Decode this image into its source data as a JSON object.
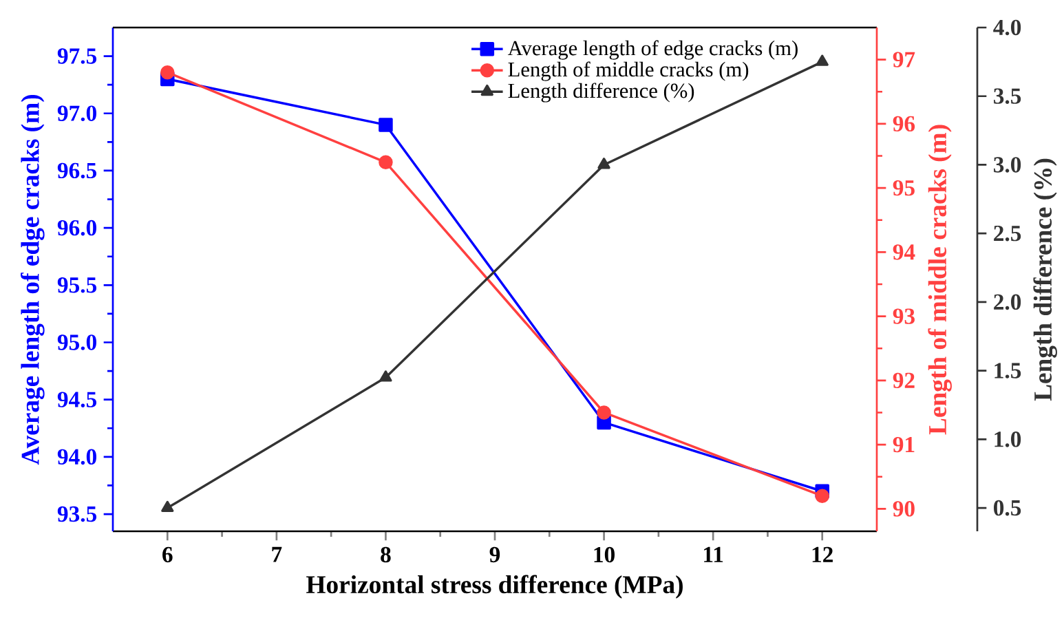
{
  "chart_data": {
    "type": "line",
    "xlabel": "Horizontal stress difference (MPa)",
    "ylabel": "Average length of edge cracks (m)",
    "y2label": "Length of middle cracks (m)",
    "y3label": "Length difference (%)",
    "x": [
      6,
      8,
      10,
      12
    ],
    "xlim": [
      5.5,
      12.5
    ],
    "xticks": [
      6,
      7,
      8,
      9,
      10,
      11,
      12
    ],
    "ylim": [
      93.35,
      97.75
    ],
    "yticks": [
      {
        "value": 93.5,
        "label": "93.5"
      },
      {
        "value": 94,
        "label": "94.0"
      },
      {
        "value": 94.5,
        "label": "94.5"
      },
      {
        "value": 95,
        "label": "95.0"
      },
      {
        "value": 95.5,
        "label": "95.5"
      },
      {
        "value": 96,
        "label": "96.0"
      },
      {
        "value": 96.5,
        "label": "96.5"
      },
      {
        "value": 97,
        "label": "97.0"
      },
      {
        "value": 97.5,
        "label": "97.5"
      }
    ],
    "y2lim": [
      89.65,
      97.5
    ],
    "y2ticks": [
      90,
      91,
      92,
      93,
      94,
      95,
      96,
      97
    ],
    "y3lim": [
      0.33,
      4.0
    ],
    "y3ticks": [
      0.5,
      {
        "value": 1,
        "label": "1.0"
      },
      1.5,
      {
        "value": 2,
        "label": "2.0"
      },
      2.5,
      {
        "value": 3,
        "label": "3.0"
      },
      3.5,
      {
        "value": 4,
        "label": "4.0"
      }
    ],
    "legend": "top right",
    "series": [
      {
        "name": "Average length of edge cracks (m)",
        "color": "#0000ff",
        "marker": "square",
        "axis": "y",
        "values": [
          97.3,
          96.9,
          94.3,
          93.7
        ]
      },
      {
        "name": "Length of middle cracks (m)",
        "color": "#ff4040",
        "marker": "circle",
        "axis": "y2",
        "values": [
          96.8,
          95.4,
          91.5,
          90.2
        ]
      },
      {
        "name": "Length difference (%)",
        "color": "#333333",
        "marker": "triangle",
        "axis": "y3",
        "values": [
          0.5,
          1.45,
          3.0,
          3.75
        ]
      }
    ]
  }
}
